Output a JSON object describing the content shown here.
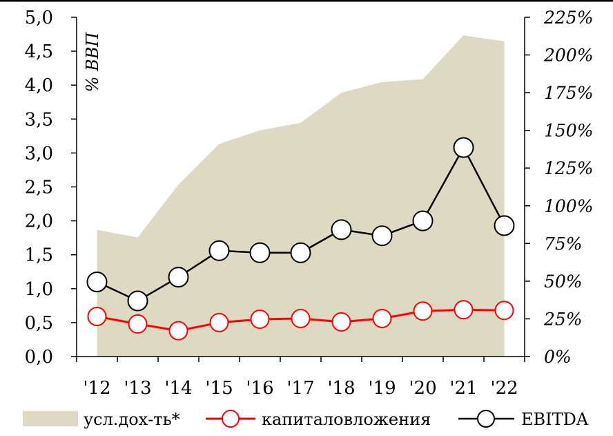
{
  "chart_data": {
    "type": "line",
    "categories": [
      "'12",
      "'13",
      "'14",
      "'15",
      "'16",
      "'17",
      "'18",
      "'19",
      "'20",
      "'21",
      "'22"
    ],
    "ylabel": "% ВВП",
    "ylim": [
      0,
      5
    ],
    "y_ticks": [
      "0,0",
      "0,5",
      "1,0",
      "1,5",
      "2,0",
      "2,5",
      "3,0",
      "3,5",
      "4,0",
      "4,5",
      "5,0"
    ],
    "y2lim": [
      0,
      225
    ],
    "y2_ticks": [
      "0%",
      "25%",
      "50%",
      "75%",
      "100%",
      "125%",
      "150%",
      "175%",
      "200%",
      "225%"
    ],
    "series": [
      {
        "name": "усл.дох-ть*",
        "kind": "area",
        "axis": "right",
        "color": "#ddd9c3",
        "values": [
          84,
          79,
          114,
          141,
          150,
          155,
          175,
          182,
          184,
          213,
          209
        ]
      },
      {
        "name": "капиталовложения",
        "kind": "line",
        "axis": "left",
        "color": "#ff0000",
        "values": [
          0.59,
          0.48,
          0.38,
          0.5,
          0.55,
          0.56,
          0.51,
          0.56,
          0.67,
          0.69,
          0.68
        ]
      },
      {
        "name": "EBITDA",
        "kind": "line",
        "axis": "left",
        "color": "#000000",
        "values": [
          1.1,
          0.82,
          1.17,
          1.56,
          1.53,
          1.53,
          1.87,
          1.78,
          2.0,
          3.08,
          1.93
        ]
      }
    ],
    "legend": "bottom",
    "grid": false
  }
}
